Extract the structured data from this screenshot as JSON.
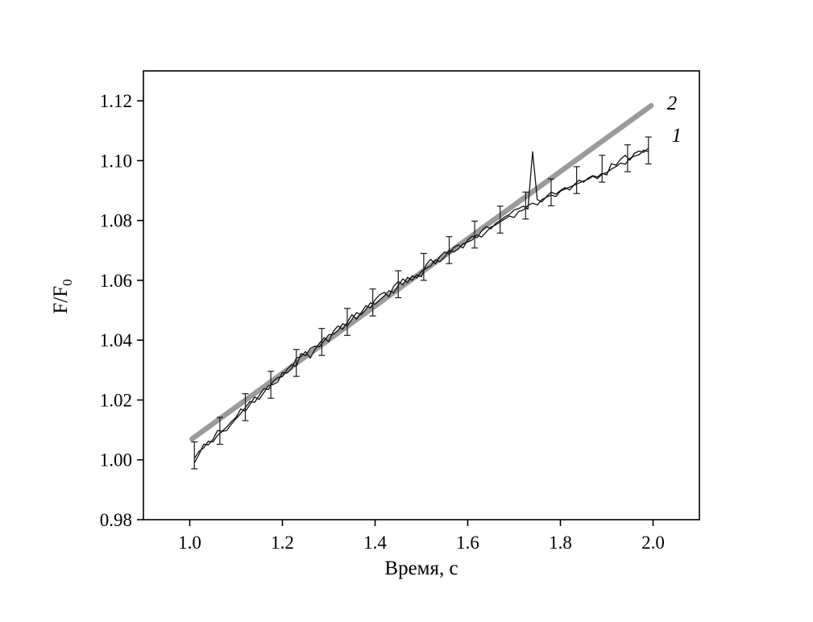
{
  "page": {
    "background": "#ffffff"
  },
  "chart_data": {
    "type": "line",
    "title": "",
    "xlabel": "Время, с",
    "ylabel": {
      "main": "F/F",
      "sub": "0"
    },
    "xlim": [
      0.9,
      2.1
    ],
    "ylim": [
      0.98,
      1.13
    ],
    "grid": false,
    "frame_color": "#000000",
    "xticks": {
      "values": [
        1.0,
        1.2,
        1.4,
        1.6,
        1.8,
        2.0
      ],
      "labels": [
        "1.0",
        "1.2",
        "1.4",
        "1.6",
        "1.8",
        "2.0"
      ]
    },
    "yticks": {
      "values": [
        0.98,
        1.0,
        1.02,
        1.04,
        1.06,
        1.08,
        1.1,
        1.12
      ],
      "labels": [
        "0.98",
        "1.00",
        "1.02",
        "1.04",
        "1.06",
        "1.08",
        "1.10",
        "1.12"
      ]
    },
    "series": [
      {
        "name": "fit-line",
        "label": "2",
        "color": "#9b9b9b",
        "width": 6.5,
        "points": [
          [
            1.005,
            1.007
          ],
          [
            1.996,
            1.1184
          ]
        ]
      },
      {
        "name": "experimental-trace-a",
        "label": "1",
        "color": "#111111",
        "width": 1.3,
        "x0": 1.01,
        "dx": 0.01,
        "y": [
          0.999,
          1.0018,
          1.0052,
          1.005,
          1.0068,
          1.0098,
          1.0096,
          1.011,
          1.0128,
          1.0142,
          1.017,
          1.0162,
          1.0185,
          1.021,
          1.0202,
          1.0225,
          1.0248,
          1.0252,
          1.026,
          1.0292,
          1.029,
          1.0305,
          1.034,
          1.0345,
          1.0362,
          1.034,
          1.0368,
          1.039,
          1.0408,
          1.0395,
          1.043,
          1.0448,
          1.0436,
          1.046,
          1.0485,
          1.047,
          1.0492,
          1.0515,
          1.0508,
          1.0535,
          1.0552,
          1.056,
          1.0545,
          1.058,
          1.0596,
          1.0585,
          1.061,
          1.06,
          1.0618,
          1.0612,
          1.0652,
          1.067,
          1.0655,
          1.068,
          1.0695,
          1.0688,
          1.071,
          1.0718,
          1.0708,
          1.0735,
          1.0748,
          1.0742,
          1.0765,
          1.078,
          1.0772,
          1.079,
          1.08,
          1.0812,
          1.082,
          1.0835,
          1.084,
          1.0848,
          1.0838,
          1.103,
          1.087,
          1.0862,
          1.088,
          1.0895,
          1.0888,
          1.09,
          1.091,
          1.0902,
          1.092,
          1.0935,
          1.0928,
          1.0942,
          1.095,
          1.0945,
          1.0958,
          1.0952,
          1.099,
          1.0985,
          1.1005,
          1.1018,
          1.1002,
          1.1025,
          1.1032,
          1.1028,
          1.1042
        ]
      },
      {
        "name": "experimental-trace-b",
        "label": "1",
        "color": "#111111",
        "width": 1.3,
        "x0": 1.01,
        "dx": 0.01,
        "y": [
          1.0005,
          1.0028,
          1.004,
          1.0062,
          1.006,
          1.0082,
          1.0095,
          1.0098,
          1.012,
          1.0138,
          1.0155,
          1.0175,
          1.0195,
          1.0192,
          1.0215,
          1.0238,
          1.0235,
          1.0262,
          1.0275,
          1.0278,
          1.0302,
          1.0318,
          1.0312,
          1.0355,
          1.0348,
          1.0372,
          1.038,
          1.0378,
          1.0398,
          1.0418,
          1.042,
          1.0432,
          1.0455,
          1.0448,
          1.047,
          1.0492,
          1.0485,
          1.0502,
          1.0525,
          1.052,
          1.0535,
          1.0548,
          1.0565,
          1.0558,
          1.0582,
          1.0605,
          1.0592,
          1.0615,
          1.0608,
          1.063,
          1.064,
          1.0648,
          1.0668,
          1.0662,
          1.0678,
          1.07,
          1.0695,
          1.0705,
          1.0722,
          1.0728,
          1.0735,
          1.0752,
          1.0745,
          1.0762,
          1.0778,
          1.0785,
          1.0795,
          1.0805,
          1.0815,
          1.081,
          1.083,
          1.0835,
          1.085,
          1.0858,
          1.0852,
          1.087,
          1.0878,
          1.0885,
          1.088,
          1.0898,
          1.0905,
          1.0912,
          1.0918,
          1.0925,
          1.0932,
          1.0938,
          1.0948,
          1.094,
          1.0955,
          1.096,
          1.0972,
          1.098,
          1.0992,
          1.0988,
          1.1008,
          1.1015,
          1.102,
          1.1035,
          1.103
        ]
      }
    ],
    "error_bars": {
      "color": "#1a1a1a",
      "line_width": 1.2,
      "cap_half_width": 4,
      "err": 0.0045,
      "points": [
        [
          1.01,
          1.0015
        ],
        [
          1.065,
          1.0097
        ],
        [
          1.12,
          1.0176
        ],
        [
          1.175,
          1.0251
        ],
        [
          1.23,
          1.0324
        ],
        [
          1.285,
          1.0394
        ],
        [
          1.34,
          1.0461
        ],
        [
          1.395,
          1.0526
        ],
        [
          1.45,
          1.0587
        ],
        [
          1.505,
          1.0645
        ],
        [
          1.56,
          1.0701
        ],
        [
          1.615,
          1.0753
        ],
        [
          1.67,
          1.0803
        ],
        [
          1.725,
          1.085
        ],
        [
          1.78,
          1.0894
        ],
        [
          1.835,
          1.0935
        ],
        [
          1.89,
          1.0973
        ],
        [
          1.945,
          1.1008
        ],
        [
          1.99,
          1.1034
        ]
      ]
    },
    "annotations": [
      {
        "text": "2",
        "x": 2.03,
        "y": 1.1192
      },
      {
        "text": "1",
        "x": 2.04,
        "y": 1.1085
      }
    ]
  }
}
